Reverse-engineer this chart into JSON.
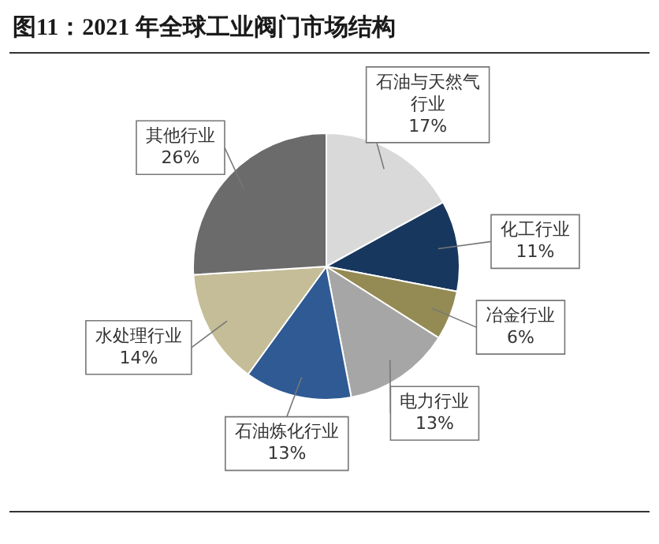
{
  "chart_data": {
    "type": "pie",
    "title": "图11：2021 年全球工业阀门市场结构",
    "categories": [
      "石油与天然气行业",
      "化工行业",
      "冶金行业",
      "电力行业",
      "石油炼化行业",
      "水处理行业",
      "其他行业"
    ],
    "values": [
      17,
      11,
      6,
      13,
      13,
      14,
      26
    ],
    "value_labels": [
      "17%",
      "11%",
      "6%",
      "13%",
      "13%",
      "14%",
      "26%"
    ],
    "colors": [
      "#d9d9d9",
      "#17375e",
      "#948a54",
      "#a6a6a6",
      "#2f5a94",
      "#c4bd97",
      "#6b6b6b"
    ],
    "legend": false
  }
}
